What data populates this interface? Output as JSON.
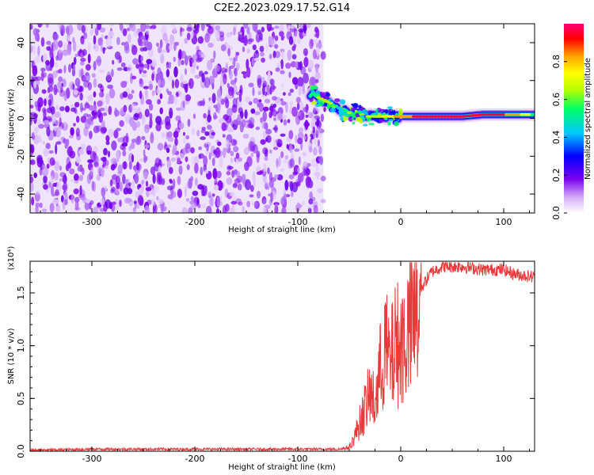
{
  "title": "C2E2.2023.029.17.52.G14",
  "chart_data": [
    {
      "type": "heatmap",
      "xlabel": "Height of straight line (km)",
      "ylabel": "Frequency (Hz)",
      "xlim": [
        -360,
        130
      ],
      "ylim": [
        -50,
        50
      ],
      "x_ticks": [
        -300,
        -200,
        -100,
        0,
        100
      ],
      "x_tick_labels": [
        "-300",
        "-200",
        "-100",
        "0",
        "100"
      ],
      "y_ticks": [
        40,
        20,
        0,
        -20,
        -40
      ],
      "y_tick_labels": [
        "40",
        "20",
        "0",
        "-20",
        "-40"
      ],
      "noise_region_x": [
        -360,
        -75
      ],
      "ridge": {
        "x": [
          -88,
          -80,
          -72,
          -64,
          -56,
          -50,
          -44,
          -38,
          -32,
          -26,
          -20,
          -14,
          -8,
          0,
          20,
          40,
          60,
          80,
          100,
          130
        ],
        "freq": [
          13,
          11,
          9,
          7,
          4,
          3,
          2,
          2,
          1,
          1,
          1,
          1,
          1,
          1,
          1,
          1,
          1,
          2,
          2,
          2
        ],
        "amplitude": [
          0.5,
          0.7,
          0.65,
          0.55,
          0.5,
          0.6,
          0.55,
          0.5,
          0.6,
          0.65,
          0.7,
          0.75,
          0.8,
          0.85,
          0.95,
          0.95,
          0.9,
          0.95,
          0.92,
          0.7
        ]
      },
      "colorbar": {
        "label": "Normalized spectral amplitude",
        "range": [
          0,
          1
        ],
        "ticks": [
          0.0,
          0.2,
          0.4,
          0.6,
          0.8
        ],
        "tick_labels": [
          "0.0",
          "0.2",
          "0.4",
          "0.6",
          "0.8"
        ],
        "colormap": [
          "#ffffff",
          "#d6b0f5",
          "#7b00f0",
          "#0000ff",
          "#00c8ff",
          "#00ff64",
          "#b4ff00",
          "#ffff00",
          "#ffa000",
          "#ff0000",
          "#ff0078"
        ]
      }
    },
    {
      "type": "line",
      "xlabel": "Height of straight line (km)",
      "ylabel": "SNR (10 * v/v)",
      "scale_label": "(x10⁴)",
      "xlim": [
        -360,
        130
      ],
      "ylim": [
        0,
        1.8
      ],
      "x_ticks": [
        -300,
        -200,
        -100,
        0,
        100
      ],
      "x_tick_labels": [
        "-300",
        "-200",
        "-100",
        "0",
        "100"
      ],
      "y_ticks": [
        0.0,
        0.5,
        1.0,
        1.5
      ],
      "y_tick_labels": [
        "0.0",
        "0.5",
        "1.0",
        "1.5"
      ],
      "series": [
        {
          "color": "#e83a3a",
          "x": [
            -360,
            -300,
            -250,
            -200,
            -150,
            -100,
            -60,
            -50,
            -45,
            -40,
            -35,
            -30,
            -25,
            -20,
            -15,
            -10,
            -5,
            0,
            10,
            20,
            30,
            40,
            60,
            80,
            100,
            110,
            130
          ],
          "y": [
            0.01,
            0.02,
            0.02,
            0.02,
            0.02,
            0.02,
            0.02,
            0.04,
            0.15,
            0.3,
            0.45,
            0.6,
            0.5,
            0.85,
            1.1,
            0.9,
            1.15,
            1.1,
            1.3,
            1.55,
            1.7,
            1.75,
            1.75,
            1.72,
            1.72,
            1.68,
            1.65
          ]
        }
      ]
    }
  ]
}
